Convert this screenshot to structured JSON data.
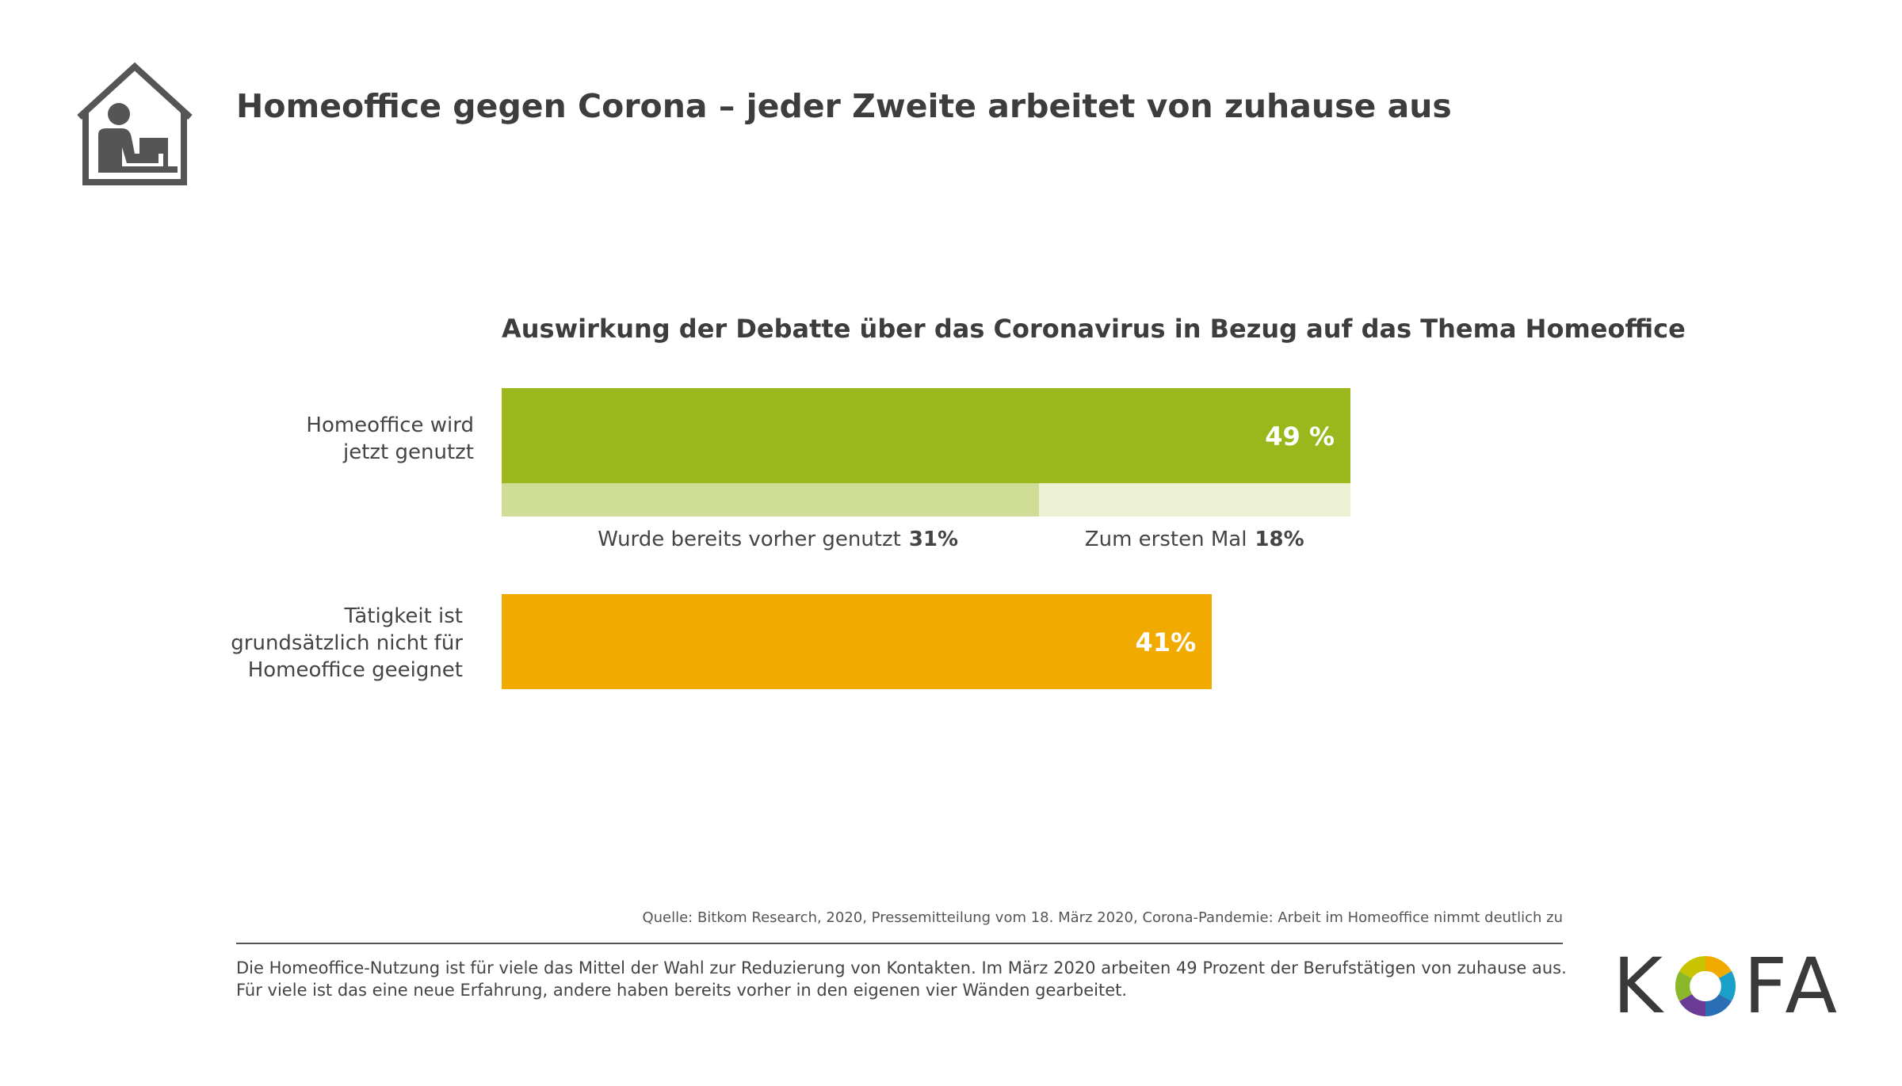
{
  "header": {
    "title": "Homeoffice gegen Corona – jeder Zweite arbeitet von zuhause aus",
    "icon": "house-person-laptop-icon"
  },
  "chart_data": {
    "type": "bar",
    "orientation": "horizontal",
    "title": "Auswirkung der Debatte über das Coronavirus in Bezug auf das Thema Homeoffice",
    "unit": "%",
    "xlim": [
      0,
      49
    ],
    "categories": [
      {
        "label_lines": [
          "Homeoffice wird",
          "jetzt genutzt"
        ],
        "value": 49,
        "value_label": "49 %",
        "color": "#9ab81c"
      },
      {
        "label_lines": [
          "Tätigkeit ist",
          "grundsätzlich nicht für",
          "Homeoffice geeignet"
        ],
        "value": 41,
        "value_label": "41%",
        "color": "#f0aa00"
      }
    ],
    "breakdown": {
      "parent": "Homeoffice wird jetzt genutzt",
      "segments": [
        {
          "name": "Wurde bereits vorher genutzt",
          "value": 31,
          "value_label": "31%",
          "color": "#cfdd96"
        },
        {
          "name": "Zum ersten Mal",
          "value": 18,
          "value_label": "18%",
          "color": "#ebf1d2"
        }
      ]
    }
  },
  "footer": {
    "source": "Quelle: Bitkom Research, 2020, Pressemitteilung vom 18. März 2020, Corona-Pandemie: Arbeit im Homeoffice nimmt deutlich zu",
    "note_line1": "Die Homeoffice-Nutzung ist für viele das Mittel der Wahl zur Reduzierung von Kontakten. Im März 2020 arbeiten 49 Prozent der Berufstätigen von zuhause aus.",
    "note_line2": "Für viele ist das eine neue Erfahrung, andere haben bereits vorher in den eigenen vier Wänden gearbeitet."
  },
  "logo": {
    "text_left": "K",
    "text_right": "FA",
    "name": "KOFA"
  }
}
